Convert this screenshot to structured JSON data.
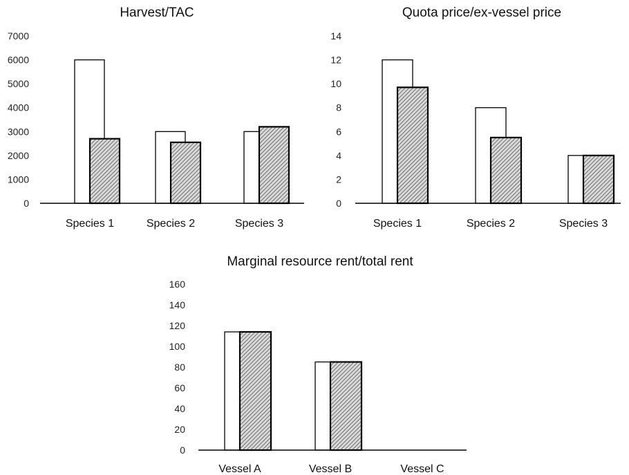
{
  "chart_data": [
    {
      "type": "bar",
      "title": "Harvest/TAC",
      "xlabel": "",
      "ylabel": "",
      "ylim": [
        0,
        7000
      ],
      "yticks": [
        0,
        1000,
        2000,
        3000,
        4000,
        5000,
        6000,
        7000
      ],
      "categories": [
        "Species 1",
        "Species 2",
        "Species 3"
      ],
      "grid": false,
      "legend": "none",
      "series": [
        {
          "style": "white-fill",
          "values": [
            6000,
            3000,
            3000
          ]
        },
        {
          "style": "hatched-fill",
          "values": [
            2700,
            2550,
            3200
          ]
        }
      ]
    },
    {
      "type": "bar",
      "title": "Quota price/ex-vessel  price",
      "xlabel": "",
      "ylabel": "",
      "ylim": [
        0,
        14
      ],
      "yticks": [
        0,
        2,
        4,
        6,
        8,
        10,
        12,
        14
      ],
      "categories": [
        "Species 1",
        "Species 2",
        "Species 3"
      ],
      "grid": false,
      "legend": "none",
      "series": [
        {
          "style": "white-fill",
          "values": [
            12,
            8,
            4
          ]
        },
        {
          "style": "hatched-fill",
          "values": [
            9.7,
            5.5,
            4
          ]
        }
      ]
    },
    {
      "type": "bar",
      "title": "Marginal resource rent/total rent",
      "xlabel": "",
      "ylabel": "",
      "ylim": [
        0,
        160
      ],
      "yticks": [
        0,
        20,
        40,
        60,
        80,
        100,
        120,
        140,
        160
      ],
      "categories": [
        "Vessel A",
        "Vessel B",
        "Vessel C"
      ],
      "grid": false,
      "legend": "none",
      "series": [
        {
          "style": "white-fill",
          "values": [
            114,
            85,
            0
          ]
        },
        {
          "style": "hatched-fill",
          "values": [
            114,
            85,
            0
          ]
        }
      ]
    }
  ],
  "colors": {
    "outline": "#000000",
    "white_bar": "#ffffff",
    "hatch_bg": "#d9d9d9",
    "hatch_line": "#555555",
    "axis": "#000000",
    "text": "#111111"
  }
}
